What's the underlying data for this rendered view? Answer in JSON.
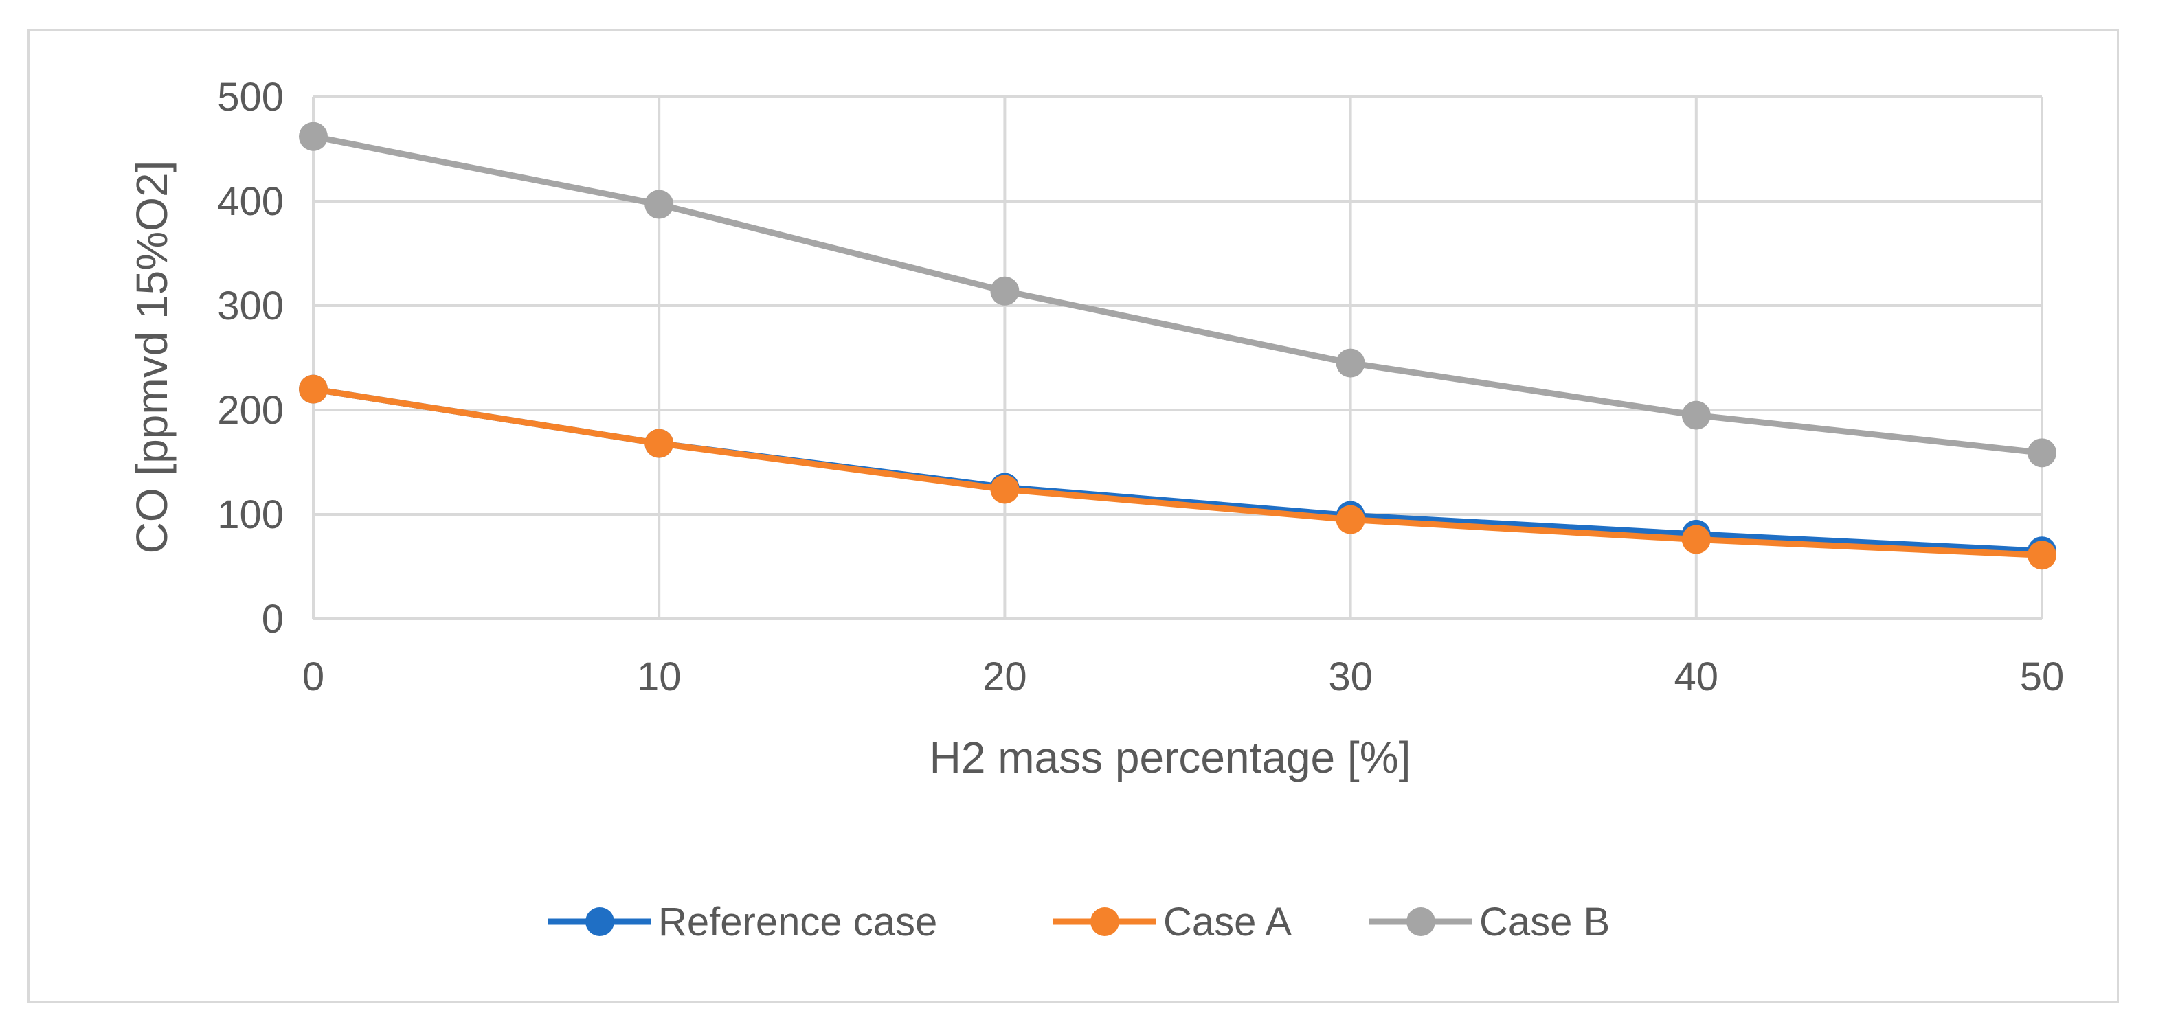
{
  "chart_data": {
    "type": "line",
    "title": "",
    "xlabel": "H2 mass percentage [%]",
    "ylabel": "CO [ppmvd 15%O2]",
    "x": [
      0,
      10,
      20,
      30,
      40,
      50
    ],
    "xlim": [
      0,
      50
    ],
    "ylim": [
      0,
      500
    ],
    "xticks": [
      0,
      10,
      20,
      30,
      40,
      50
    ],
    "yticks": [
      0,
      100,
      200,
      300,
      400,
      500
    ],
    "grid": true,
    "legend_position": "bottom",
    "series": [
      {
        "name": "Reference case",
        "color": "#1f6fc5",
        "values": [
          220,
          168,
          126,
          99,
          81,
          65
        ]
      },
      {
        "name": "Case A",
        "color": "#f5822a",
        "values": [
          220,
          168,
          124,
          95,
          76,
          61
        ]
      },
      {
        "name": "Case B",
        "color": "#a5a5a5",
        "values": [
          462,
          397,
          314,
          245,
          195,
          159
        ]
      }
    ]
  }
}
